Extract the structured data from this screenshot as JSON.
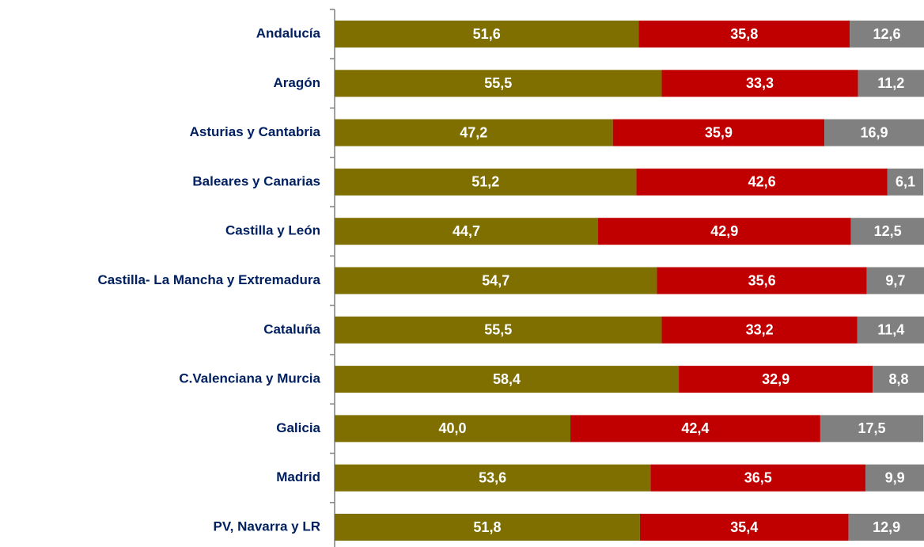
{
  "chart_data": {
    "type": "stacked-bar-horizontal",
    "categories": [
      "Andalucía",
      "Aragón",
      "Asturias y Cantabria",
      "Baleares y Canarias",
      "Castilla y León",
      "Castilla- La Mancha y Extremadura",
      "Cataluña",
      "C.Valenciana y Murcia",
      "Galicia",
      "Madrid",
      "PV, Navarra y LR"
    ],
    "xlim": [
      0,
      100
    ],
    "series": [
      {
        "color": "#7f6f00",
        "values": [
          51.6,
          55.5,
          47.2,
          51.2,
          44.7,
          54.7,
          55.5,
          58.4,
          40.0,
          53.6,
          51.8
        ],
        "value_labels": [
          "51,6",
          "55,5",
          "47,2",
          "51,2",
          "44,7",
          "54,7",
          "55,5",
          "58,4",
          "40,0",
          "53,6",
          "51,8"
        ]
      },
      {
        "color": "#c00000",
        "values": [
          35.8,
          33.3,
          35.9,
          42.6,
          42.9,
          35.6,
          33.2,
          32.9,
          42.4,
          36.5,
          35.4
        ],
        "value_labels": [
          "35,8",
          "33,3",
          "35,9",
          "42,6",
          "42,9",
          "35,6",
          "33,2",
          "32,9",
          "42,4",
          "36,5",
          "35,4"
        ]
      },
      {
        "color": "#808080",
        "values": [
          12.6,
          11.2,
          16.9,
          6.1,
          12.5,
          9.7,
          11.4,
          8.8,
          17.5,
          9.9,
          12.9
        ],
        "value_labels": [
          "12,6",
          "11,2",
          "16,9",
          "6,1",
          "12,5",
          "9,7",
          "11,4",
          "8,8",
          "17,5",
          "9,9",
          "12,9"
        ]
      }
    ]
  }
}
